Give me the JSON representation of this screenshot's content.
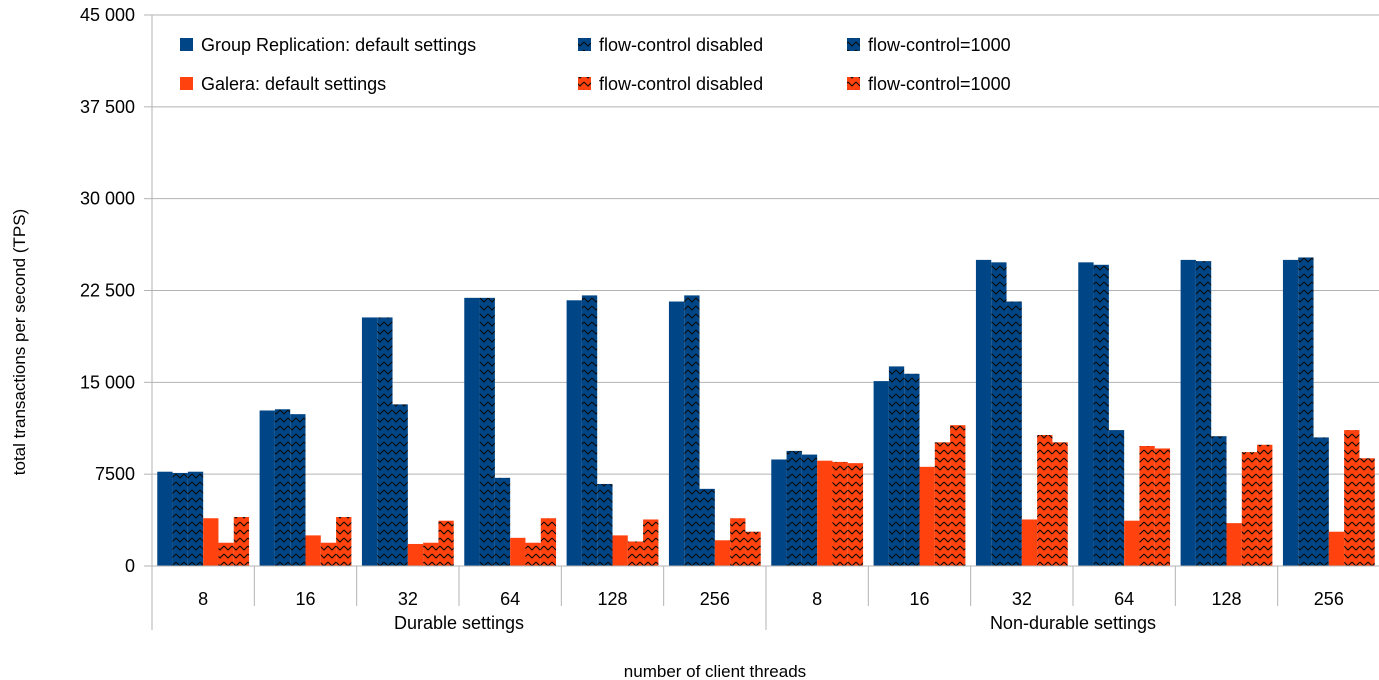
{
  "chart_data": {
    "type": "bar",
    "title": "",
    "xlabel": "number of client threads",
    "ylabel": "total transactions per second (TPS)",
    "ylim": [
      0,
      45000
    ],
    "yticks": [
      0,
      7500,
      15000,
      22500,
      30000,
      37500,
      45000
    ],
    "ytick_labels": [
      "0",
      "7500",
      "15 000",
      "22 500",
      "30 000",
      "37 500",
      "45 000"
    ],
    "groups": [
      {
        "label": "Durable settings",
        "categories": [
          "8",
          "16",
          "32",
          "64",
          "128",
          "256"
        ]
      },
      {
        "label": "Non-durable settings",
        "categories": [
          "8",
          "16",
          "32",
          "64",
          "128",
          "256"
        ]
      }
    ],
    "legend_position": "top-left",
    "grid": "horizontal",
    "series": [
      {
        "name": "Group Replication: default settings",
        "color": "#004586",
        "pattern": "solid",
        "values": [
          7700,
          12700,
          20300,
          21900,
          21700,
          21600,
          8700,
          15100,
          25000,
          24800,
          25000,
          25000
        ]
      },
      {
        "name": "flow-control disabled",
        "color": "#004586",
        "pattern": "hatch",
        "values": [
          7600,
          12800,
          20300,
          21900,
          22100,
          22100,
          9400,
          16300,
          24800,
          24600,
          24900,
          25200
        ]
      },
      {
        "name": "flow-control=1000",
        "color": "#004586",
        "pattern": "hatch",
        "values": [
          7700,
          12400,
          13200,
          7200,
          6700,
          6300,
          9100,
          15700,
          21600,
          11100,
          10600,
          10500
        ]
      },
      {
        "name": "Galera: default settings",
        "color": "#ff420e",
        "pattern": "solid",
        "values": [
          3900,
          2500,
          1800,
          2300,
          2500,
          2100,
          8600,
          8100,
          3800,
          3700,
          3500,
          2800
        ]
      },
      {
        "name": "flow-control disabled",
        "color": "#ff420e",
        "pattern": "hatch",
        "values": [
          1900,
          1900,
          1900,
          1900,
          2000,
          3900,
          8500,
          10100,
          10700,
          9800,
          9300,
          11100
        ]
      },
      {
        "name": "flow-control=1000",
        "color": "#ff420e",
        "pattern": "hatch",
        "values": [
          4000,
          4000,
          3700,
          3900,
          3800,
          2800,
          8400,
          11500,
          10100,
          9600,
          9900,
          8800
        ]
      }
    ]
  }
}
